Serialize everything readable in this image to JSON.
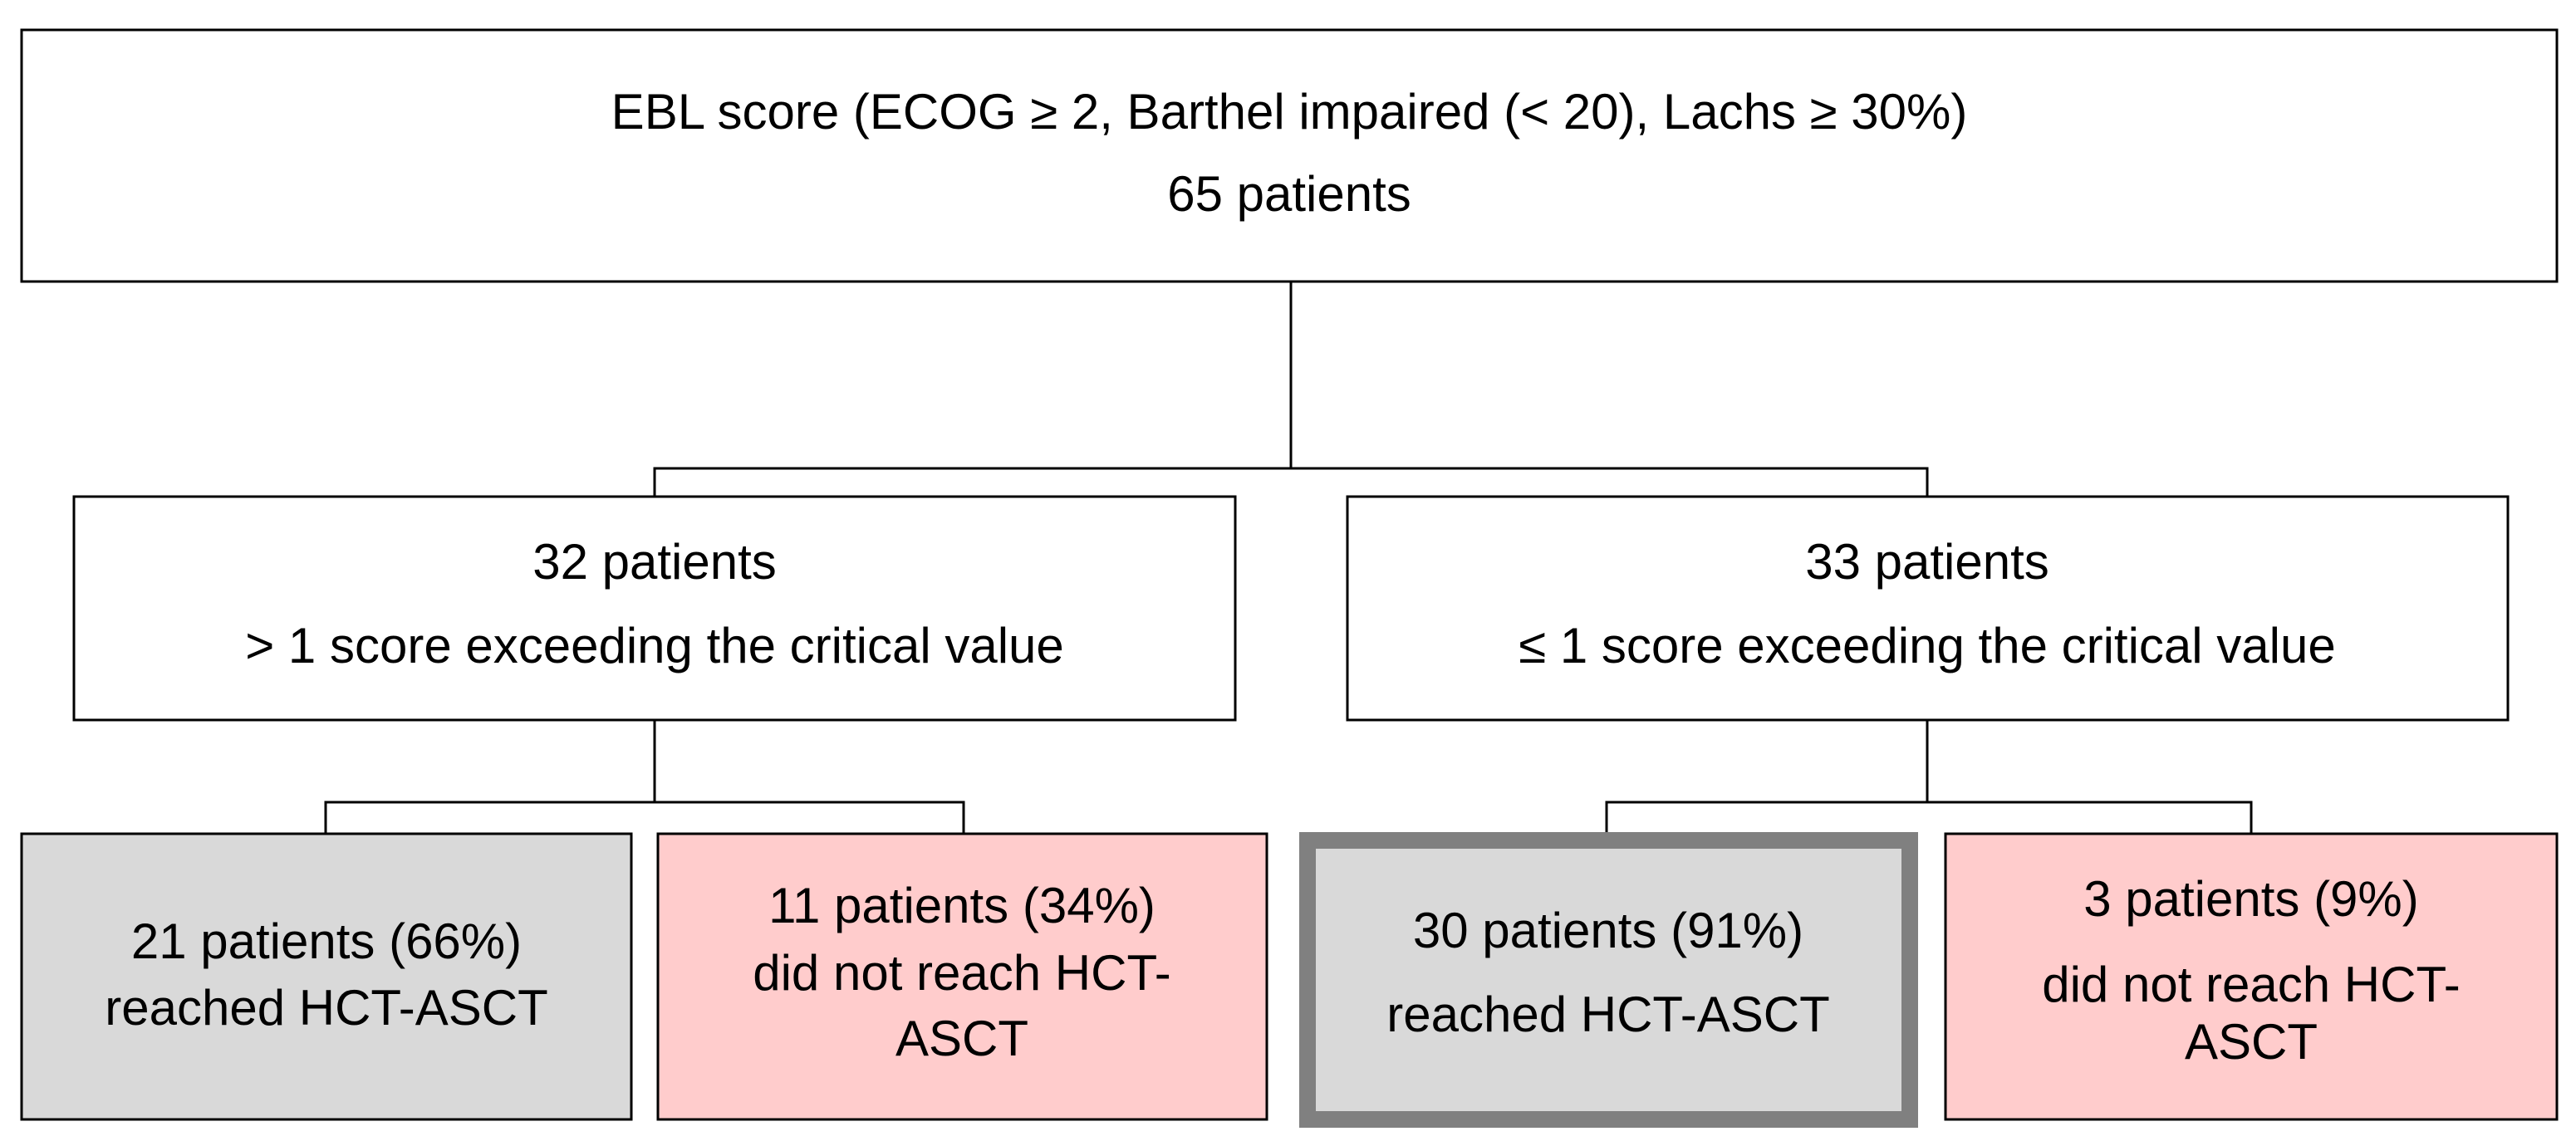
{
  "nodes": [
    {
      "lines": [
        "EBL score (ECOG ≥ 2, Barthel impaired (< 20), Lachs ≥ 30%)",
        "65 patients"
      ]
    },
    {
      "lines": [
        "32 patients",
        "> 1 score exceeding  the critical value"
      ]
    },
    {
      "lines": [
        "33 patients",
        "≤ 1 score exceeding  the critical value"
      ]
    },
    {
      "lines": [
        "21 patients (66%)",
        "reached HCT-ASCT"
      ]
    },
    {
      "lines": [
        "11 patients (34%)",
        "did not reach HCT-",
        "ASCT"
      ]
    },
    {
      "lines": [
        "30 patients (91%)",
        "reached  HCT-ASCT"
      ]
    },
    {
      "lines": [
        "3 patients (9%)",
        "did not reach HCT-",
        "ASCT"
      ]
    }
  ]
}
